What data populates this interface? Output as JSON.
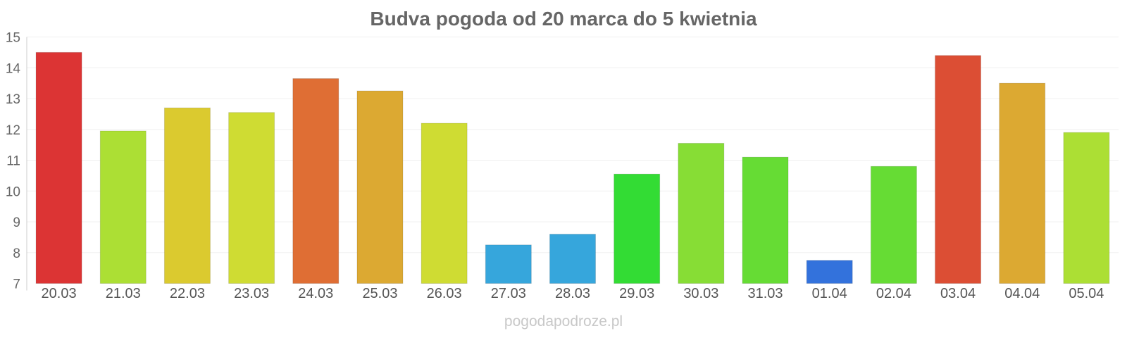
{
  "chart_data": {
    "type": "bar",
    "title": "Budva pogoda od 20 marca do 5 kwietnia",
    "xlabel": "",
    "ylabel": "",
    "ylim": [
      7,
      15
    ],
    "yticks": [
      7,
      8,
      9,
      10,
      11,
      12,
      13,
      14,
      15
    ],
    "grid": true,
    "legend": "none",
    "categories": [
      "20.03",
      "21.03",
      "22.03",
      "23.03",
      "24.03",
      "25.03",
      "26.03",
      "27.03",
      "28.03",
      "29.03",
      "30.03",
      "31.03",
      "01.04",
      "02.04",
      "03.04",
      "04.04",
      "05.04"
    ],
    "values": [
      14.5,
      11.95,
      12.7,
      12.55,
      13.65,
      13.25,
      12.2,
      8.25,
      8.6,
      10.55,
      11.55,
      11.1,
      7.75,
      10.8,
      14.4,
      13.5,
      11.9
    ],
    "colors": [
      "#dc3434",
      "#acdf34",
      "#dbca2f",
      "#cfdc33",
      "#df6e34",
      "#dca932",
      "#cfdc33",
      "#36a6dc",
      "#36a6dc",
      "#33dc34",
      "#87dd35",
      "#66dc34",
      "#3372dc",
      "#66dc34",
      "#dc4e34",
      "#dca932",
      "#acdf34"
    ]
  },
  "watermark": "pogodapodroze.pl"
}
